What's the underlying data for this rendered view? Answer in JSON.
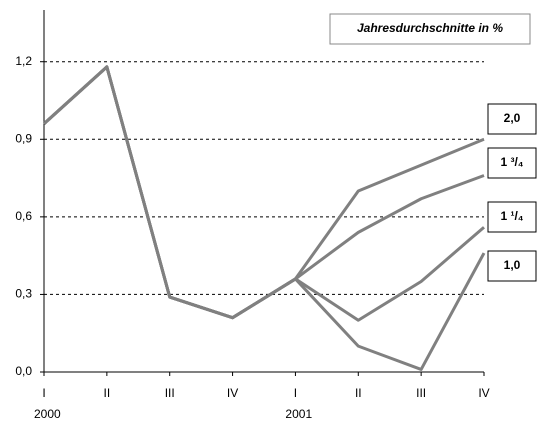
{
  "chart_data": {
    "type": "line",
    "legend_title": "Jahresdurchschnitte in %",
    "categories": [
      "I",
      "II",
      "III",
      "IV",
      "I",
      "II",
      "III",
      "IV"
    ],
    "category_groups": [
      "2000",
      null,
      null,
      null,
      "2001",
      null,
      null,
      null
    ],
    "series": [
      {
        "name": "2,0",
        "color": "#808080",
        "values": [
          0.96,
          1.18,
          0.29,
          0.21,
          0.36,
          0.7,
          0.8,
          0.9
        ]
      },
      {
        "name": "1 ³/₄",
        "color": "#808080",
        "values": [
          0.96,
          1.18,
          0.29,
          0.21,
          0.36,
          0.54,
          0.67,
          0.76
        ]
      },
      {
        "name": "1 ¹/₄",
        "color": "#808080",
        "values": [
          0.96,
          1.18,
          0.29,
          0.21,
          0.36,
          0.2,
          0.35,
          0.56
        ]
      },
      {
        "name": "1,0",
        "color": "#808080",
        "values": [
          0.96,
          1.18,
          0.29,
          0.21,
          0.36,
          0.1,
          0.01,
          0.46
        ]
      }
    ],
    "ylim": [
      0,
      1.4
    ],
    "yticks": [
      {
        "value": 0,
        "label": "0,0"
      },
      {
        "value": 0.3,
        "label": "0,3"
      },
      {
        "value": 0.6,
        "label": "0,6"
      },
      {
        "value": 0.9,
        "label": "0,9"
      },
      {
        "value": 1.2,
        "label": "1,2"
      }
    ],
    "grid": true
  }
}
